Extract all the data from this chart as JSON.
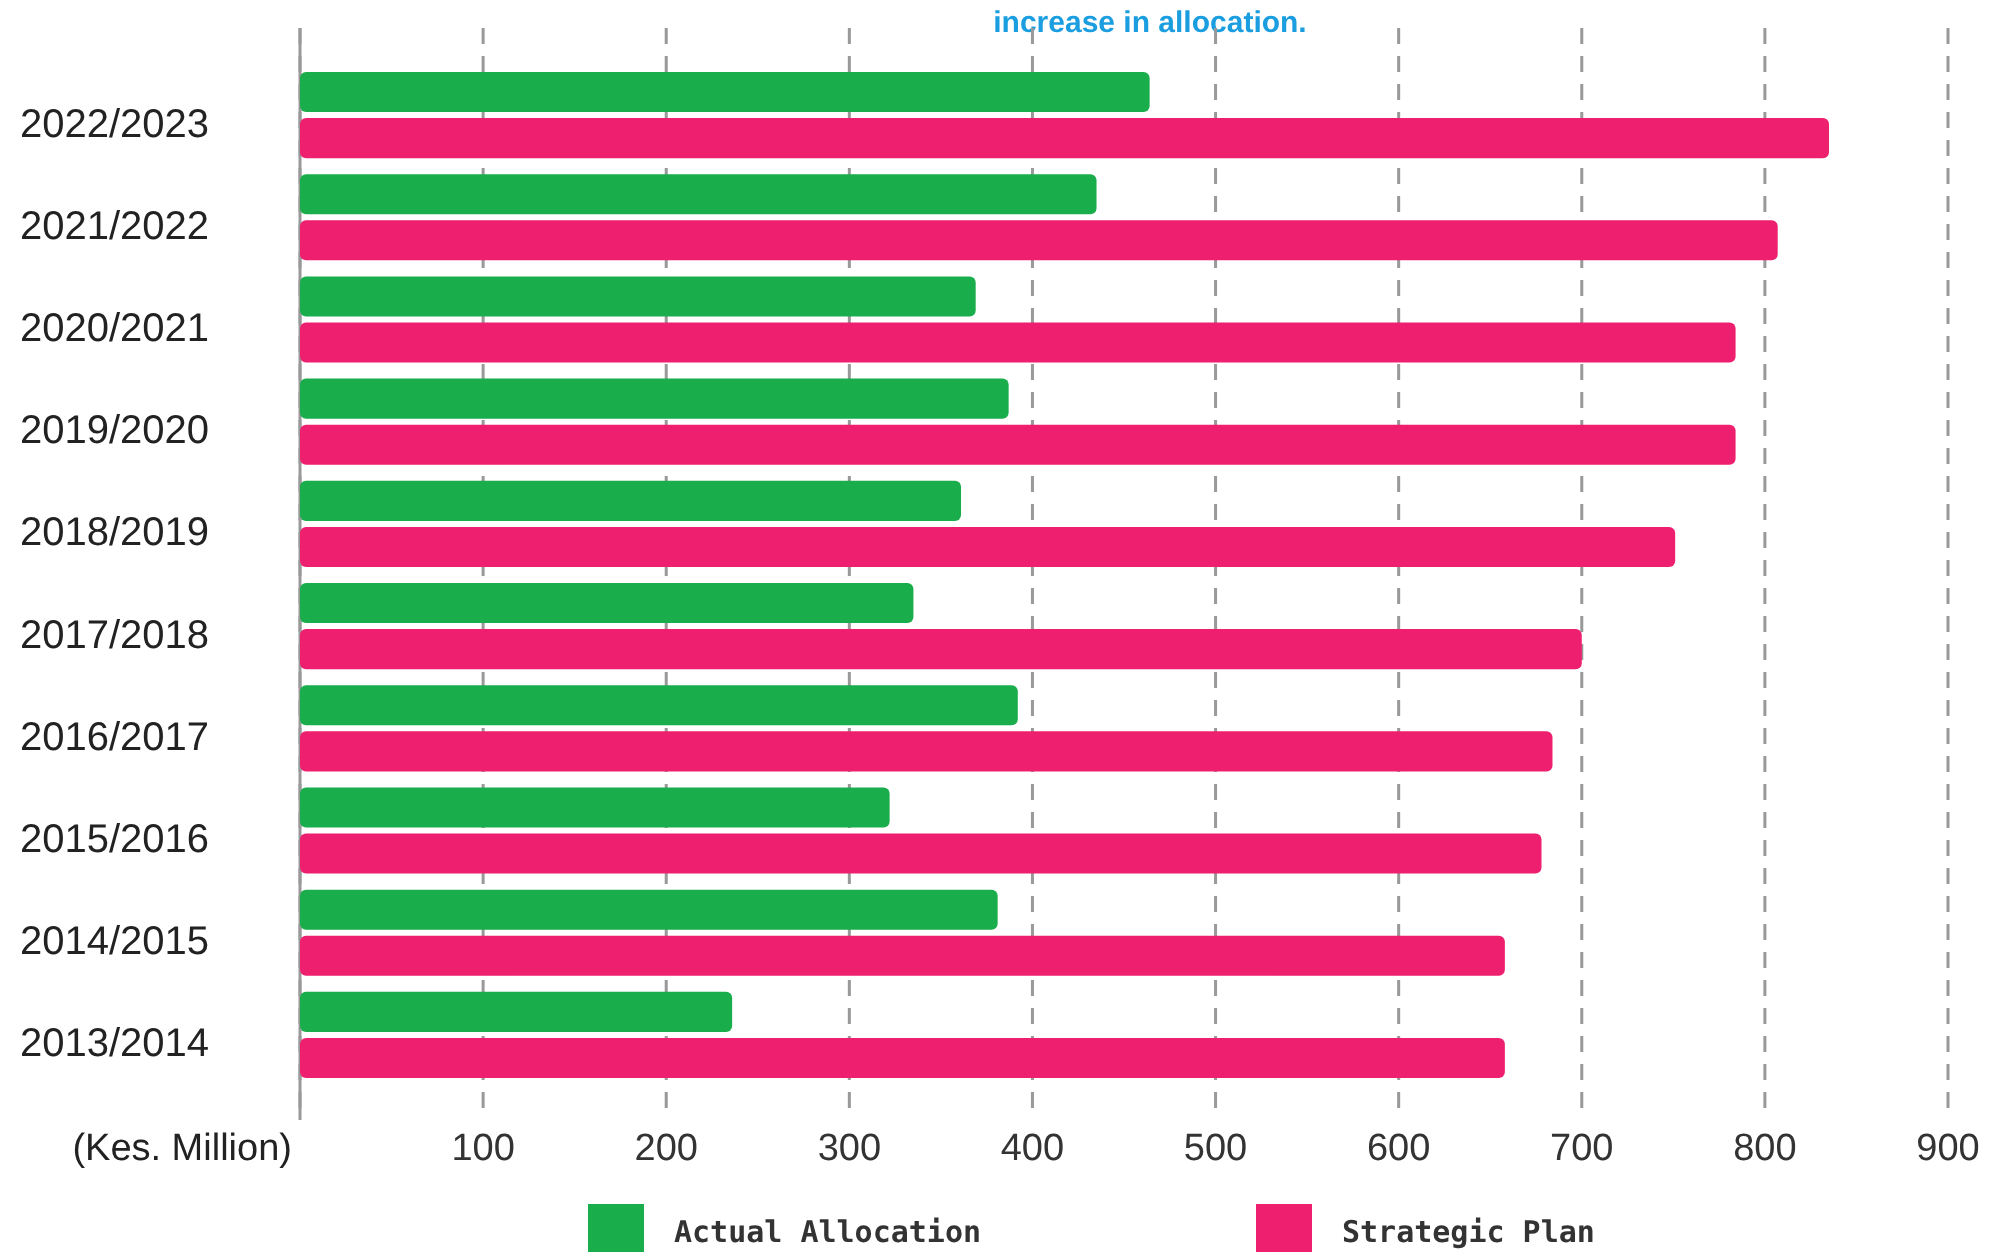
{
  "chart_data": {
    "type": "bar",
    "orientation": "horizontal",
    "title": "increase in allocation.",
    "xlabel": "(Kes. Million)",
    "categories": [
      "2022/2023",
      "2021/2022",
      "2020/2021",
      "2019/2020",
      "2018/2019",
      "2017/2018",
      "2016/2017",
      "2015/2016",
      "2014/2015",
      "2013/2014"
    ],
    "series": [
      {
        "name": "Actual Allocation",
        "color": "#19ad4b",
        "values": [
          464,
          435,
          369,
          387,
          361,
          335,
          392,
          322,
          381,
          236
        ]
      },
      {
        "name": "Strategic Plan",
        "color": "#ee1f6e",
        "values": [
          835,
          807,
          784,
          784,
          751,
          700,
          684,
          678,
          658,
          658
        ]
      }
    ],
    "xlim": [
      0,
      900
    ],
    "xticks": [
      {
        "value": 0,
        "label": null
      },
      100,
      200,
      300,
      400,
      500,
      600,
      700,
      800,
      900
    ],
    "grid": "x",
    "legend": "bottom"
  }
}
